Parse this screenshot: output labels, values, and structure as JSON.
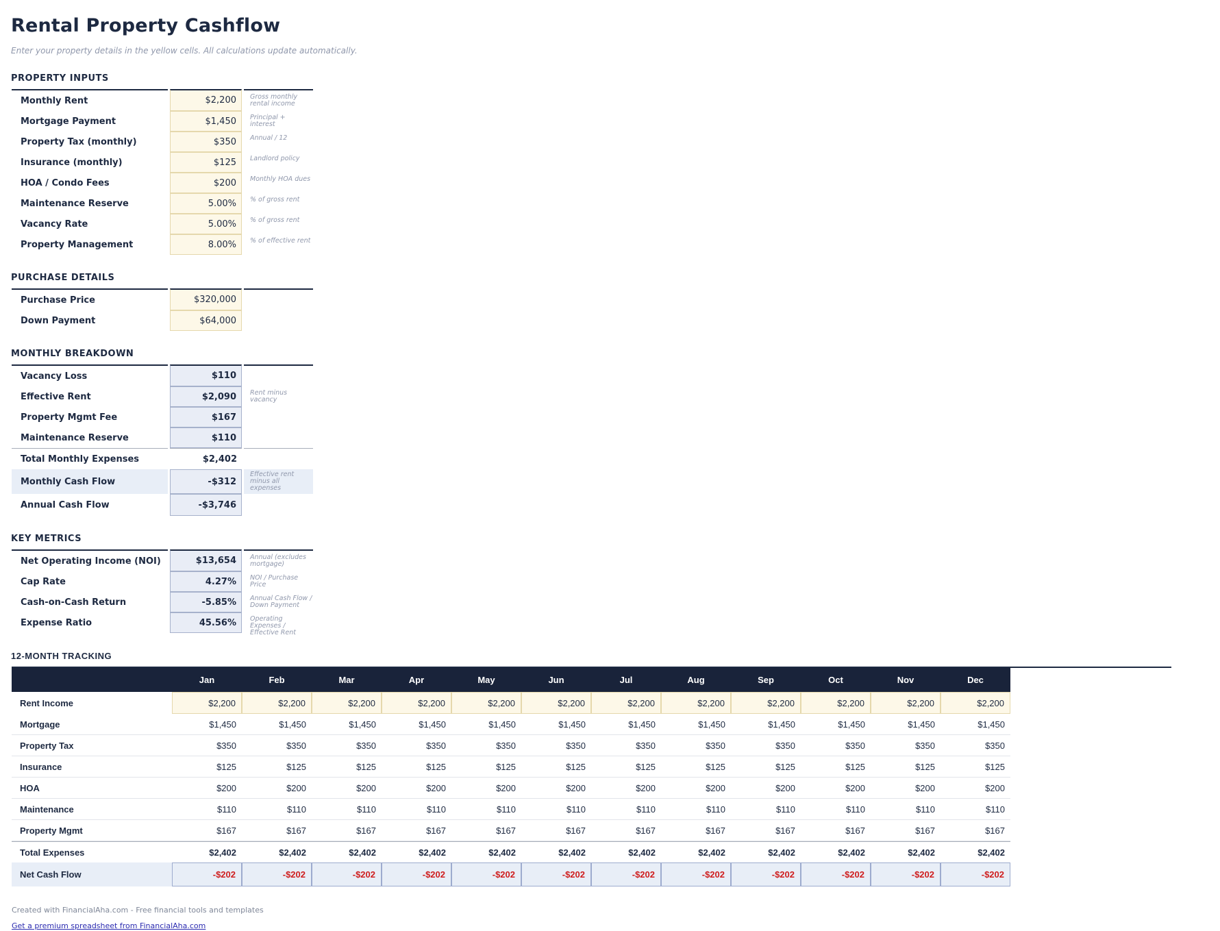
{
  "page": {
    "title": "Rental Property Cashflow",
    "subtitle": "Enter your property details in the yellow cells. All calculations update automatically."
  },
  "colors": {
    "navy_text": "#1d2941",
    "table_header_bg": "#19233a",
    "input_cell_bg": "#fdf8e8",
    "input_cell_border": "#e5d8ac",
    "calc_cell_bg": "#e9edf6",
    "calc_cell_border": "#a6b1cb",
    "highlight_row_bg": "#e8eef7",
    "negative_value": "#cf1d1d",
    "note_text": "#8f97ab",
    "link": "#2b2bb0"
  },
  "sections": {
    "property_inputs": {
      "heading": "PROPERTY INPUTS",
      "rows": [
        {
          "label": "Monthly Rent",
          "value": "$2,200",
          "note": "Gross monthly rental income",
          "kind": "input"
        },
        {
          "label": "Mortgage Payment",
          "value": "$1,450",
          "note": "Principal + interest",
          "kind": "input"
        },
        {
          "label": "Property Tax (monthly)",
          "value": "$350",
          "note": "Annual / 12",
          "kind": "input"
        },
        {
          "label": "Insurance (monthly)",
          "value": "$125",
          "note": "Landlord policy",
          "kind": "input"
        },
        {
          "label": "HOA / Condo Fees",
          "value": "$200",
          "note": "Monthly HOA dues",
          "kind": "input"
        },
        {
          "label": "Maintenance Reserve",
          "value": "5.00%",
          "note": "% of gross rent",
          "kind": "input"
        },
        {
          "label": "Vacancy Rate",
          "value": "5.00%",
          "note": "% of gross rent",
          "kind": "input"
        },
        {
          "label": "Property Management",
          "value": "8.00%",
          "note": "% of effective rent",
          "kind": "input"
        }
      ]
    },
    "purchase_details": {
      "heading": "PURCHASE DETAILS",
      "rows": [
        {
          "label": "Purchase Price",
          "value": "$320,000",
          "note": "",
          "kind": "input"
        },
        {
          "label": "Down Payment",
          "value": "$64,000",
          "note": "",
          "kind": "input"
        }
      ]
    },
    "monthly_breakdown": {
      "heading": "MONTHLY BREAKDOWN",
      "rows": [
        {
          "label": "Vacancy Loss",
          "value": "$110",
          "note": "",
          "kind": "calc"
        },
        {
          "label": "Effective Rent",
          "value": "$2,090",
          "note": "Rent minus vacancy",
          "kind": "calc"
        },
        {
          "label": "Property Mgmt Fee",
          "value": "$167",
          "note": "",
          "kind": "calc"
        },
        {
          "label": "Maintenance Reserve",
          "value": "$110",
          "note": "",
          "kind": "calc"
        },
        {
          "label": "Total Monthly Expenses",
          "value": "$2,402",
          "note": "",
          "kind": "total"
        },
        {
          "label": "Monthly Cash Flow",
          "value": "-$312",
          "note": "Effective rent minus all expenses",
          "kind": "highlight"
        },
        {
          "label": "Annual Cash Flow",
          "value": "-$3,746",
          "note": "",
          "kind": "annual"
        }
      ]
    },
    "key_metrics": {
      "heading": "KEY METRICS",
      "rows": [
        {
          "label": "Net Operating Income (NOI)",
          "value": "$13,654",
          "note": "Annual (excludes mortgage)",
          "kind": "calc"
        },
        {
          "label": "Cap Rate",
          "value": "4.27%",
          "note": "NOI / Purchase Price",
          "kind": "calc"
        },
        {
          "label": "Cash-on-Cash Return",
          "value": "-5.85%",
          "note": "Annual Cash Flow / Down Payment",
          "kind": "calc"
        },
        {
          "label": "Expense Ratio",
          "value": "45.56%",
          "note": "Operating Expenses / Effective Rent",
          "kind": "calc"
        }
      ]
    },
    "tracking": {
      "heading": "12-MONTH TRACKING",
      "months": [
        "Jan",
        "Feb",
        "Mar",
        "Apr",
        "May",
        "Jun",
        "Jul",
        "Aug",
        "Sep",
        "Oct",
        "Nov",
        "Dec"
      ],
      "rows": [
        {
          "label": "Rent Income",
          "value": "$2,200",
          "kind": "input"
        },
        {
          "label": "Mortgage",
          "value": "$1,450",
          "kind": "plain"
        },
        {
          "label": "Property Tax",
          "value": "$350",
          "kind": "plain"
        },
        {
          "label": "Insurance",
          "value": "$125",
          "kind": "plain"
        },
        {
          "label": "HOA",
          "value": "$200",
          "kind": "plain"
        },
        {
          "label": "Maintenance",
          "value": "$110",
          "kind": "plain"
        },
        {
          "label": "Property Mgmt",
          "value": "$167",
          "kind": "plain"
        },
        {
          "label": "Total Expenses",
          "value": "$2,402",
          "kind": "total"
        },
        {
          "label": "Net Cash Flow",
          "value": "-$202",
          "kind": "negative"
        }
      ]
    }
  },
  "footer": {
    "credit": "Created with FinancialAha.com - Free financial tools and templates",
    "link_label": "Get a premium spreadsheet from FinancialAha.com"
  }
}
